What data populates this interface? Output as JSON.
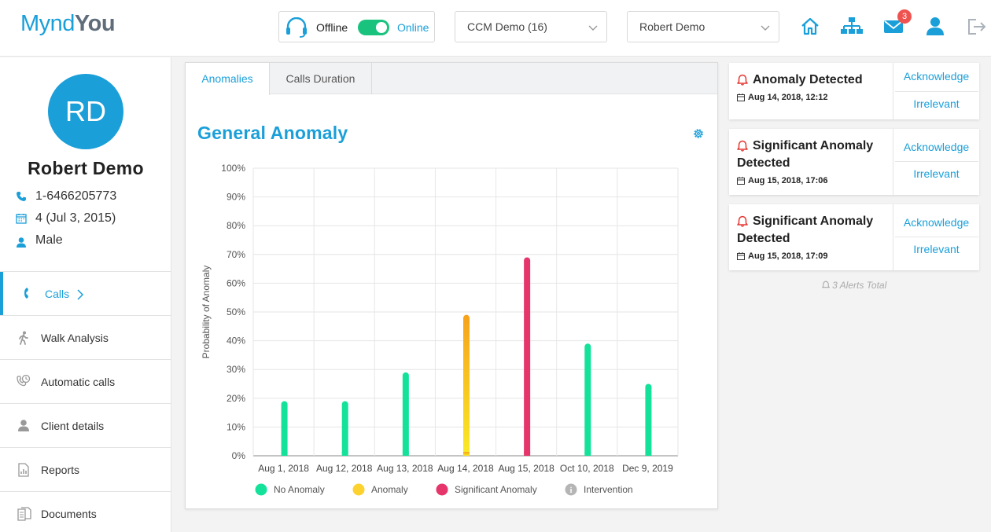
{
  "header": {
    "logo_part1": "Mynd",
    "logo_part2": "You",
    "status_offline": "Offline",
    "status_online": "Online",
    "ccm_select": "CCM Demo (16)",
    "user_select": "Robert Demo",
    "mail_badge": "3",
    "colors": {
      "accent": "#1a9fd9",
      "toggle_on": "#19c37d",
      "badge": "#ef5350"
    }
  },
  "patient": {
    "initials": "RD",
    "name": "Robert Demo",
    "phone": "1-6466205773",
    "age": "4 (Jul 3, 2015)",
    "gender": "Male"
  },
  "menu": [
    {
      "label": "Calls",
      "icon": "phone-icon",
      "active": true
    },
    {
      "label": "Walk Analysis",
      "icon": "walk-icon"
    },
    {
      "label": "Automatic calls",
      "icon": "auto-call-icon"
    },
    {
      "label": "Client details",
      "icon": "person-icon"
    },
    {
      "label": "Reports",
      "icon": "report-icon"
    },
    {
      "label": "Documents",
      "icon": "documents-icon"
    }
  ],
  "tabs": [
    "Anomalies",
    "Calls Duration"
  ],
  "chart_title": "General Anomaly",
  "chart_data": {
    "type": "bar",
    "ylabel": "Probability of Anomaly",
    "ylim": [
      0,
      100
    ],
    "yticks": [
      "0%",
      "10%",
      "20%",
      "30%",
      "40%",
      "50%",
      "60%",
      "70%",
      "80%",
      "90%",
      "100%"
    ],
    "categories": [
      "Aug 1, 2018",
      "Aug 12, 2018",
      "Aug 13, 2018",
      "Aug 14, 2018",
      "Aug 15, 2018",
      "Oct 10, 2018",
      "Dec 9, 2019"
    ],
    "values": [
      19,
      19,
      29,
      49,
      69,
      39,
      25
    ],
    "classes": [
      "No Anomaly",
      "No Anomaly",
      "No Anomaly",
      "Anomaly",
      "Significant Anomaly",
      "No Anomaly",
      "No Anomaly"
    ],
    "legend": [
      {
        "name": "No Anomaly",
        "color": "#14e29a"
      },
      {
        "name": "Anomaly",
        "color": "#fdd22e"
      },
      {
        "name": "Significant Anomaly",
        "color": "#e5356b"
      },
      {
        "name": "Intervention",
        "color": "#b5b5b5"
      }
    ],
    "legend_position": "bottom",
    "grid": true
  },
  "alerts": [
    {
      "title": "Anomaly Detected",
      "date": "Aug 14, 2018, 12:12",
      "acknowledge": "Acknowledge",
      "irrelevant": "Irrelevant"
    },
    {
      "title": "Significant Anomaly Detected",
      "date": "Aug 15, 2018, 17:06",
      "acknowledge": "Acknowledge",
      "irrelevant": "Irrelevant"
    },
    {
      "title": "Significant Anomaly Detected",
      "date": "Aug 15, 2018, 17:09",
      "acknowledge": "Acknowledge",
      "irrelevant": "Irrelevant"
    }
  ],
  "alerts_total": "3 Alerts Total"
}
